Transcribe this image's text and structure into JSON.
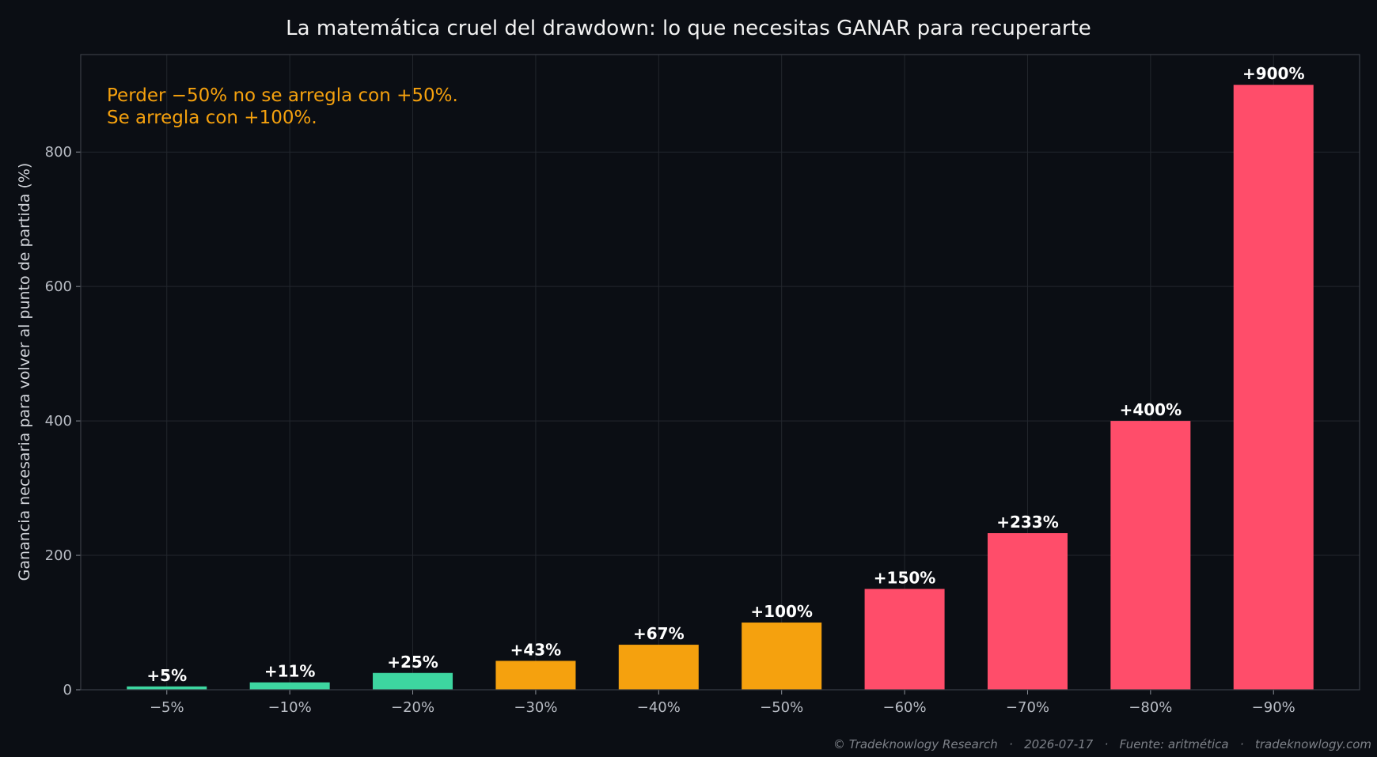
{
  "chart_data": {
    "type": "bar",
    "title": "La matemática cruel del drawdown: lo que necesitas GANAR para recuperarte",
    "ylabel": "Ganancia necesaria para volver al punto de partida (%)",
    "xlabel": "",
    "categories": [
      "−5%",
      "−10%",
      "−20%",
      "−30%",
      "−40%",
      "−50%",
      "−60%",
      "−70%",
      "−80%",
      "−90%"
    ],
    "values": [
      5,
      11,
      25,
      43,
      67,
      100,
      150,
      233,
      400,
      900
    ],
    "labels": [
      "+5%",
      "+11%",
      "+25%",
      "+43%",
      "+67%",
      "+100%",
      "+150%",
      "+233%",
      "+400%",
      "+900%"
    ],
    "bar_colors": [
      "#3dd6a0",
      "#3dd6a0",
      "#3dd6a0",
      "#f5a10e",
      "#f5a10e",
      "#f5a10e",
      "#ff4d6a",
      "#ff4d6a",
      "#ff4d6a",
      "#ff4d6a"
    ],
    "ylim": [
      0,
      945
    ],
    "yticks": [
      0,
      200,
      400,
      600,
      800
    ],
    "grid": true,
    "annotation": {
      "line1": "Perder −50% no se arregla con +50%.",
      "line2": "Se arregla con +100%."
    },
    "footer": "© Tradeknowlogy Research   ·   2026-07-17   ·   Fuente: aritmética   ·   tradeknowlogy.com"
  },
  "colors": {
    "background": "#0b0e14",
    "axes_border": "#3a3e45",
    "grid": "#23272e",
    "annotation": "#f5a10e"
  }
}
